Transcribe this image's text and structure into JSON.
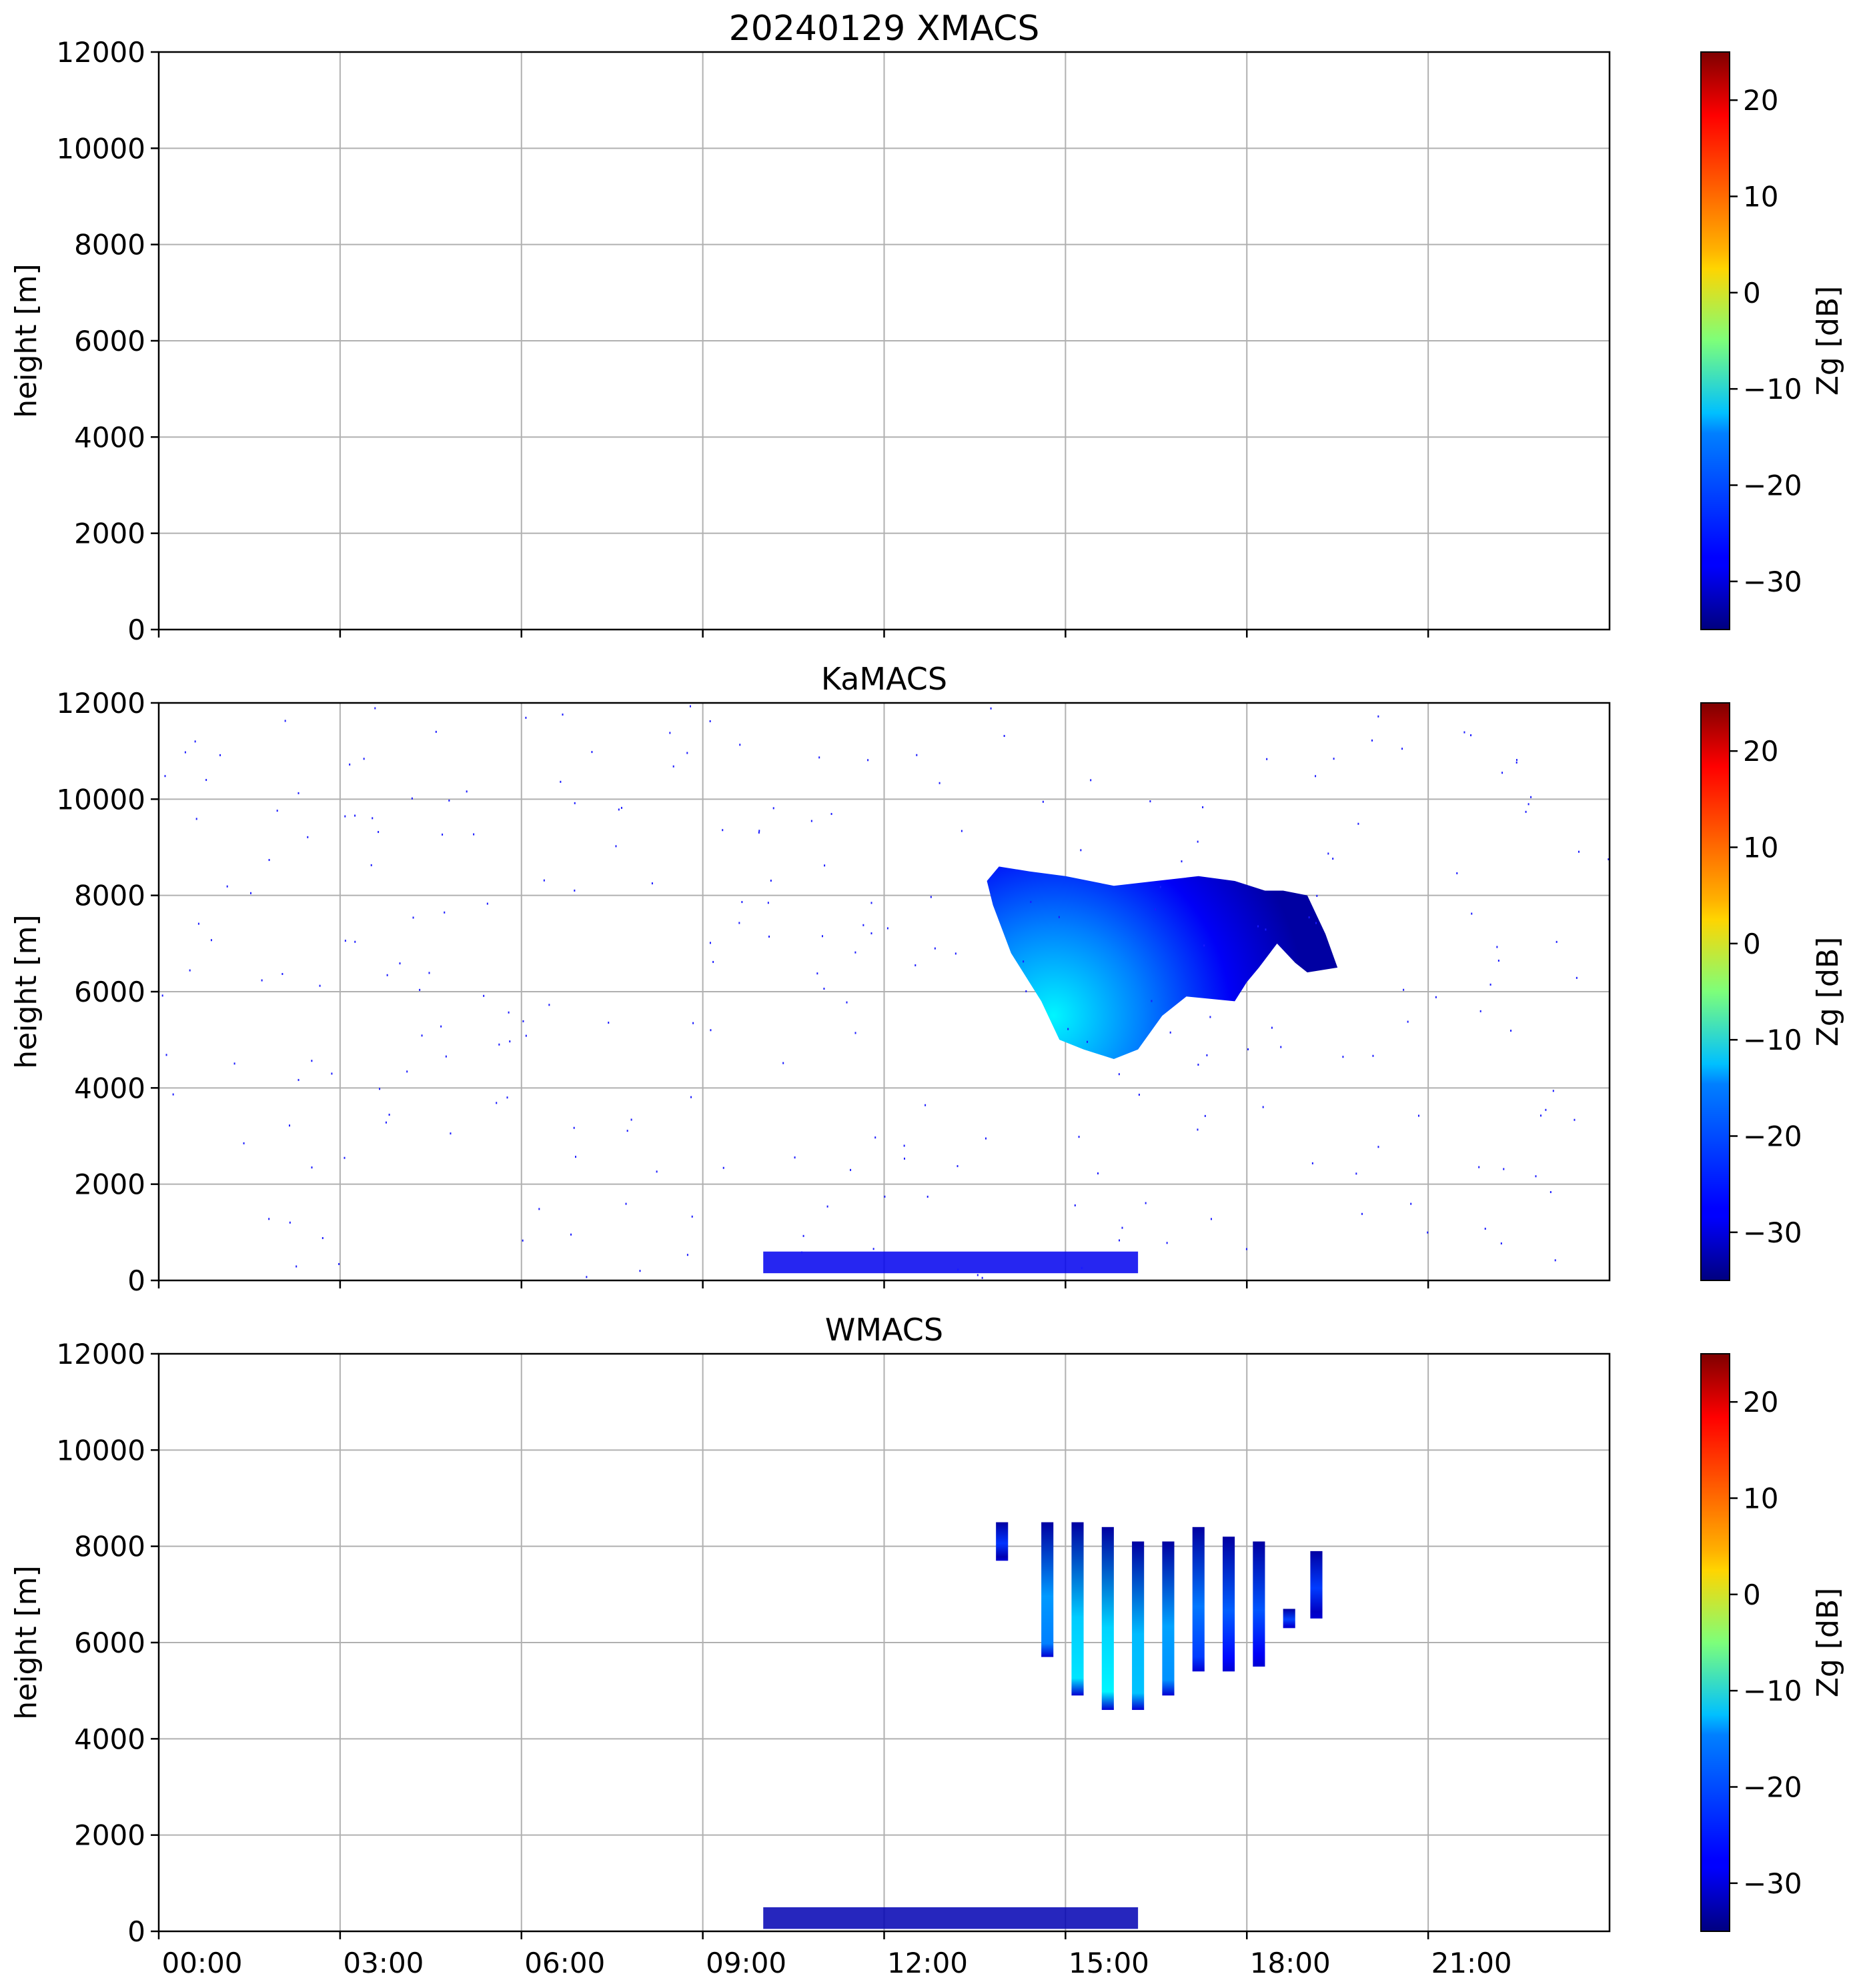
{
  "chart_data": [
    {
      "type": "heatmap",
      "title": "20240129 XMACS",
      "xlabel": "",
      "ylabel": "height [m]",
      "xlim": [
        "00:00",
        "24:00"
      ],
      "ylim": [
        0,
        12000
      ],
      "xticks": [
        "00:00",
        "03:00",
        "06:00",
        "09:00",
        "12:00",
        "15:00",
        "18:00",
        "21:00"
      ],
      "yticks": [
        "0",
        "2000",
        "4000",
        "6000",
        "8000",
        "10000",
        "12000"
      ],
      "xtick_hours": [
        0,
        3,
        6,
        9,
        12,
        15,
        18,
        21
      ],
      "ytick_values": [
        0,
        2000,
        4000,
        6000,
        8000,
        10000,
        12000
      ],
      "show_xtick_labels": false,
      "grid": true,
      "colorbar": {
        "label": "Zg [dB]",
        "vmin": -35,
        "vmax": 25,
        "ticks": [
          "−30",
          "−20",
          "−10",
          "0",
          "10",
          "20"
        ],
        "tick_values": [
          -30,
          -20,
          -10,
          0,
          10,
          20
        ],
        "colormap": "jet"
      },
      "echo_regions": []
    },
    {
      "type": "heatmap",
      "title": "KaMACS",
      "xlabel": "",
      "ylabel": "height [m]",
      "xlim": [
        "00:00",
        "24:00"
      ],
      "ylim": [
        0,
        12000
      ],
      "xticks": [
        "00:00",
        "03:00",
        "06:00",
        "09:00",
        "12:00",
        "15:00",
        "18:00",
        "21:00"
      ],
      "yticks": [
        "0",
        "2000",
        "4000",
        "6000",
        "8000",
        "10000",
        "12000"
      ],
      "xtick_hours": [
        0,
        3,
        6,
        9,
        12,
        15,
        18,
        21
      ],
      "ytick_values": [
        0,
        2000,
        4000,
        6000,
        8000,
        10000,
        12000
      ],
      "show_xtick_labels": false,
      "grid": true,
      "colorbar": {
        "label": "Zg [dB]",
        "vmin": -35,
        "vmax": 25,
        "ticks": [
          "−30",
          "−20",
          "−10",
          "0",
          "10",
          "20"
        ],
        "tick_values": [
          -30,
          -20,
          -10,
          0,
          10,
          20
        ],
        "colormap": "jet"
      },
      "echo_regions": [
        {
          "description": "upper cloud",
          "outline_hours_m": [
            [
              13.9,
              8600
            ],
            [
              14.4,
              8500
            ],
            [
              15.0,
              8400
            ],
            [
              15.8,
              8200
            ],
            [
              16.5,
              8300
            ],
            [
              17.2,
              8400
            ],
            [
              17.8,
              8300
            ],
            [
              18.3,
              8100
            ],
            [
              18.6,
              8100
            ],
            [
              19.0,
              8000
            ],
            [
              19.3,
              7200
            ],
            [
              19.5,
              6500
            ],
            [
              19.0,
              6400
            ],
            [
              18.8,
              6600
            ],
            [
              18.5,
              7000
            ],
            [
              18.2,
              6500
            ],
            [
              18.0,
              6200
            ],
            [
              17.8,
              5800
            ],
            [
              17.0,
              5900
            ],
            [
              16.6,
              5500
            ],
            [
              16.2,
              4800
            ],
            [
              15.8,
              4600
            ],
            [
              15.3,
              4800
            ],
            [
              14.9,
              5000
            ],
            [
              14.6,
              5800
            ],
            [
              14.1,
              6800
            ],
            [
              13.8,
              7800
            ],
            [
              13.7,
              8300
            ]
          ],
          "zg_range_db": [
            -33,
            -13
          ],
          "core": {
            "hours": 14.8,
            "height_m": 5500,
            "zg_db": -13
          }
        },
        {
          "description": "boundary layer echo",
          "hours_range": [
            10.0,
            16.2
          ],
          "height_range_m": [
            150,
            600
          ],
          "zg_range_db": [
            -35,
            -22
          ]
        }
      ]
    },
    {
      "type": "heatmap",
      "title": "WMACS",
      "xlabel": "",
      "ylabel": "height [m]",
      "xlim": [
        "00:00",
        "24:00"
      ],
      "ylim": [
        0,
        12000
      ],
      "xticks": [
        "00:00",
        "03:00",
        "06:00",
        "09:00",
        "12:00",
        "15:00",
        "18:00",
        "21:00"
      ],
      "yticks": [
        "0",
        "2000",
        "4000",
        "6000",
        "8000",
        "10000",
        "12000"
      ],
      "xtick_hours": [
        0,
        3,
        6,
        9,
        12,
        15,
        18,
        21
      ],
      "ytick_values": [
        0,
        2000,
        4000,
        6000,
        8000,
        10000,
        12000
      ],
      "show_xtick_labels": true,
      "grid": true,
      "colorbar": {
        "label": "Zg [dB]",
        "vmin": -35,
        "vmax": 25,
        "ticks": [
          "−30",
          "−20",
          "−10",
          "0",
          "10",
          "20"
        ],
        "tick_values": [
          -30,
          -20,
          -10,
          0,
          10,
          20
        ],
        "colormap": "jet"
      },
      "echo_regions": [
        {
          "description": "cloud column",
          "hours_range": [
            13.85,
            14.05
          ],
          "height_range_m": [
            7700,
            8500
          ],
          "zg_db": -32
        },
        {
          "description": "cloud column",
          "hours_range": [
            14.6,
            14.8
          ],
          "height_range_m": [
            5700,
            8500
          ],
          "zg_db": -20
        },
        {
          "description": "cloud column",
          "hours_range": [
            15.1,
            15.3
          ],
          "height_range_m": [
            4900,
            8500
          ],
          "zg_db": -14
        },
        {
          "description": "cloud column",
          "hours_range": [
            15.6,
            15.8
          ],
          "height_range_m": [
            4600,
            8400
          ],
          "zg_db": -13
        },
        {
          "description": "cloud column",
          "hours_range": [
            16.1,
            16.3
          ],
          "height_range_m": [
            4600,
            8100
          ],
          "zg_db": -16
        },
        {
          "description": "cloud column",
          "hours_range": [
            16.6,
            16.8
          ],
          "height_range_m": [
            4900,
            8100
          ],
          "zg_db": -19
        },
        {
          "description": "cloud column",
          "hours_range": [
            17.1,
            17.3
          ],
          "height_range_m": [
            5400,
            8400
          ],
          "zg_db": -24
        },
        {
          "description": "cloud column",
          "hours_range": [
            17.6,
            17.8
          ],
          "height_range_m": [
            5400,
            8200
          ],
          "zg_db": -27
        },
        {
          "description": "cloud column",
          "hours_range": [
            18.1,
            18.3
          ],
          "height_range_m": [
            5500,
            8100
          ],
          "zg_db": -28
        },
        {
          "description": "cloud column",
          "hours_range": [
            18.6,
            18.8
          ],
          "height_range_m": [
            6300,
            6700
          ],
          "zg_db": -30
        },
        {
          "description": "cloud column",
          "hours_range": [
            19.05,
            19.25
          ],
          "height_range_m": [
            6500,
            7900
          ],
          "zg_db": -31
        },
        {
          "description": "boundary layer echo",
          "hours_range": [
            10.0,
            16.2
          ],
          "height_range_m": [
            50,
            500
          ],
          "zg_db": -32
        }
      ]
    }
  ]
}
